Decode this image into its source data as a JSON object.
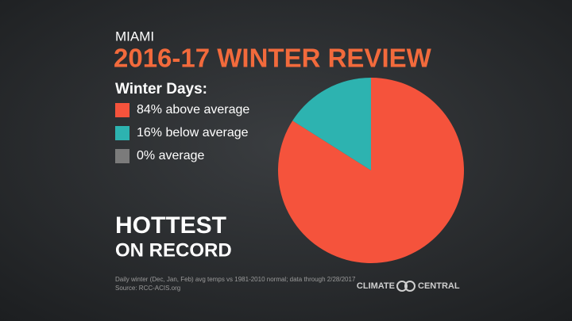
{
  "chart_data": {
    "type": "pie",
    "subtitle": "MIAMI",
    "title": "2016-17 WINTER REVIEW",
    "legend_title": "Winter Days:",
    "categories": [
      "84% above average",
      "16% below average",
      "0% average"
    ],
    "values": [
      84,
      16,
      0
    ],
    "colors": [
      "#f5533c",
      "#2db3b0",
      "#7b7b7b"
    ],
    "annotation": [
      "HOTTEST",
      "ON RECORD"
    ],
    "footnote": [
      "Daily winter (Dec, Jan, Feb) avg temps vs 1981-2010 normal; data through 2/28/2017",
      "Source: RCC-ACIS.org"
    ],
    "logo": [
      "CLIMATE",
      "CENTRAL"
    ]
  }
}
